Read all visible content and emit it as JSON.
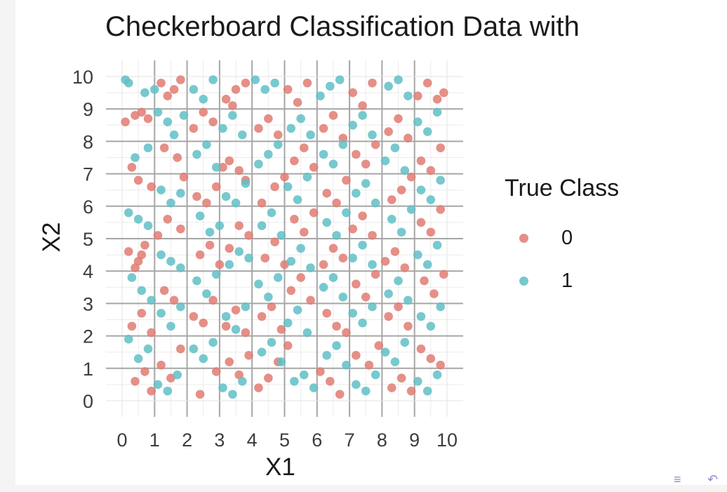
{
  "chart_data": {
    "type": "scatter",
    "title": "Checkerboard Classification Data with",
    "xlabel": "X1",
    "ylabel": "X2",
    "xlim": [
      0,
      10
    ],
    "ylim": [
      0,
      10
    ],
    "x_ticks": [
      "0",
      "1",
      "2",
      "3",
      "4",
      "5",
      "6",
      "7",
      "8",
      "9",
      "10"
    ],
    "y_ticks": [
      "0",
      "1",
      "2",
      "3",
      "4",
      "5",
      "6",
      "7",
      "8",
      "9",
      "10"
    ],
    "grid": true,
    "legend": {
      "title": "True Class",
      "position": "right",
      "entries": [
        "0",
        "1"
      ]
    },
    "colors": {
      "0": "#e07b72",
      "1": "#5fbfc5"
    },
    "series": [
      {
        "name": "0",
        "points": [
          [
            0.1,
            8.6
          ],
          [
            0.4,
            8.8
          ],
          [
            0.6,
            8.9
          ],
          [
            0.8,
            8.7
          ],
          [
            1.2,
            9.8
          ],
          [
            1.4,
            9.4
          ],
          [
            1.6,
            9.6
          ],
          [
            1.8,
            9.9
          ],
          [
            0.3,
            7.2
          ],
          [
            0.5,
            6.8
          ],
          [
            0.9,
            6.6
          ],
          [
            1.3,
            7.8
          ],
          [
            1.7,
            7.5
          ],
          [
            1.9,
            6.9
          ],
          [
            0.2,
            4.6
          ],
          [
            0.5,
            4.3
          ],
          [
            0.7,
            4.8
          ],
          [
            1.1,
            5.1
          ],
          [
            1.4,
            5.6
          ],
          [
            1.8,
            5.3
          ],
          [
            0.4,
            4.1
          ],
          [
            0.6,
            4.5
          ],
          [
            0.3,
            2.3
          ],
          [
            0.6,
            2.7
          ],
          [
            0.9,
            2.1
          ],
          [
            1.3,
            3.4
          ],
          [
            1.6,
            3.1
          ],
          [
            0.4,
            0.6
          ],
          [
            0.7,
            0.9
          ],
          [
            0.9,
            0.3
          ],
          [
            1.2,
            1.1
          ],
          [
            1.5,
            0.7
          ],
          [
            1.8,
            1.6
          ],
          [
            2.2,
            8.4
          ],
          [
            2.5,
            8.9
          ],
          [
            2.8,
            8.6
          ],
          [
            3.2,
            9.3
          ],
          [
            3.5,
            9.6
          ],
          [
            3.8,
            9.8
          ],
          [
            3.4,
            9.1
          ],
          [
            2.3,
            6.3
          ],
          [
            2.6,
            6.1
          ],
          [
            2.9,
            6.6
          ],
          [
            3.1,
            7.2
          ],
          [
            3.3,
            7.4
          ],
          [
            3.6,
            7.1
          ],
          [
            3.8,
            6.8
          ],
          [
            2.4,
            4.5
          ],
          [
            2.7,
            4.8
          ],
          [
            3.0,
            4.2
          ],
          [
            3.3,
            4.7
          ],
          [
            3.6,
            5.4
          ],
          [
            3.9,
            5.1
          ],
          [
            2.2,
            2.6
          ],
          [
            2.5,
            2.4
          ],
          [
            2.8,
            3.1
          ],
          [
            3.2,
            2.3
          ],
          [
            3.5,
            2.8
          ],
          [
            3.8,
            2.1
          ],
          [
            2.4,
            0.2
          ],
          [
            2.9,
            0.9
          ],
          [
            3.3,
            1.2
          ],
          [
            3.6,
            0.8
          ],
          [
            3.9,
            1.4
          ],
          [
            4.2,
            8.4
          ],
          [
            4.5,
            8.7
          ],
          [
            4.8,
            8.2
          ],
          [
            5.1,
            9.6
          ],
          [
            5.4,
            9.2
          ],
          [
            5.7,
            9.8
          ],
          [
            4.3,
            6.1
          ],
          [
            4.7,
            6.6
          ],
          [
            5.0,
            6.9
          ],
          [
            5.3,
            7.4
          ],
          [
            5.6,
            7.8
          ],
          [
            5.9,
            7.2
          ],
          [
            4.4,
            4.4
          ],
          [
            4.7,
            4.9
          ],
          [
            5.0,
            4.2
          ],
          [
            5.3,
            5.6
          ],
          [
            5.6,
            5.2
          ],
          [
            5.9,
            5.8
          ],
          [
            4.3,
            2.6
          ],
          [
            4.6,
            2.9
          ],
          [
            4.9,
            2.2
          ],
          [
            5.2,
            3.4
          ],
          [
            5.5,
            3.8
          ],
          [
            5.8,
            3.1
          ],
          [
            4.2,
            0.4
          ],
          [
            4.5,
            0.7
          ],
          [
            4.8,
            1.2
          ],
          [
            5.1,
            1.7
          ],
          [
            6.2,
            8.4
          ],
          [
            6.5,
            8.8
          ],
          [
            6.8,
            8.1
          ],
          [
            7.1,
            9.5
          ],
          [
            7.4,
            9.1
          ],
          [
            7.7,
            9.8
          ],
          [
            6.3,
            6.4
          ],
          [
            6.6,
            6.1
          ],
          [
            6.9,
            6.8
          ],
          [
            7.2,
            7.6
          ],
          [
            7.5,
            7.3
          ],
          [
            7.8,
            7.9
          ],
          [
            6.2,
            4.2
          ],
          [
            6.5,
            4.7
          ],
          [
            6.8,
            4.4
          ],
          [
            7.1,
            5.3
          ],
          [
            7.4,
            5.7
          ],
          [
            7.7,
            5.1
          ],
          [
            6.3,
            2.7
          ],
          [
            6.6,
            2.3
          ],
          [
            6.9,
            2.1
          ],
          [
            7.2,
            3.6
          ],
          [
            7.5,
            3.2
          ],
          [
            7.8,
            3.9
          ],
          [
            6.1,
            0.9
          ],
          [
            6.4,
            0.6
          ],
          [
            6.7,
            0.2
          ],
          [
            7.2,
            1.4
          ],
          [
            7.6,
            1.1
          ],
          [
            7.9,
            1.7
          ],
          [
            8.2,
            8.3
          ],
          [
            8.5,
            8.7
          ],
          [
            8.8,
            8.1
          ],
          [
            9.1,
            9.4
          ],
          [
            9.4,
            9.8
          ],
          [
            9.7,
            9.3
          ],
          [
            9.9,
            9.5
          ],
          [
            8.3,
            6.2
          ],
          [
            8.6,
            6.5
          ],
          [
            8.9,
            6.9
          ],
          [
            9.2,
            7.4
          ],
          [
            9.5,
            7.1
          ],
          [
            9.8,
            7.8
          ],
          [
            8.1,
            4.3
          ],
          [
            8.4,
            4.6
          ],
          [
            8.7,
            4.1
          ],
          [
            9.2,
            5.5
          ],
          [
            9.5,
            5.2
          ],
          [
            9.8,
            5.9
          ],
          [
            8.2,
            2.6
          ],
          [
            8.5,
            2.9
          ],
          [
            8.8,
            2.3
          ],
          [
            9.3,
            3.7
          ],
          [
            9.6,
            3.3
          ],
          [
            9.9,
            3.9
          ],
          [
            8.3,
            0.4
          ],
          [
            8.6,
            0.7
          ],
          [
            8.9,
            0.3
          ],
          [
            9.2,
            1.6
          ],
          [
            9.5,
            1.3
          ],
          [
            9.8,
            1.1
          ]
        ]
      },
      {
        "name": "1",
        "points": [
          [
            0.1,
            9.9
          ],
          [
            0.2,
            9.8
          ],
          [
            0.7,
            9.5
          ],
          [
            1.0,
            9.6
          ],
          [
            0.4,
            7.5
          ],
          [
            0.8,
            7.8
          ],
          [
            1.1,
            8.9
          ],
          [
            1.4,
            8.6
          ],
          [
            1.6,
            8.2
          ],
          [
            1.9,
            8.8
          ],
          [
            0.2,
            5.8
          ],
          [
            0.5,
            5.6
          ],
          [
            0.8,
            5.4
          ],
          [
            1.2,
            6.5
          ],
          [
            1.5,
            6.1
          ],
          [
            1.8,
            6.4
          ],
          [
            0.3,
            3.8
          ],
          [
            0.6,
            3.4
          ],
          [
            0.9,
            3.1
          ],
          [
            1.2,
            4.5
          ],
          [
            1.5,
            4.3
          ],
          [
            1.8,
            4.1
          ],
          [
            0.2,
            1.9
          ],
          [
            0.5,
            1.3
          ],
          [
            0.8,
            1.6
          ],
          [
            1.2,
            2.7
          ],
          [
            1.5,
            2.3
          ],
          [
            1.8,
            2.9
          ],
          [
            1.1,
            0.5
          ],
          [
            1.4,
            0.3
          ],
          [
            1.7,
            0.8
          ],
          [
            2.2,
            9.6
          ],
          [
            2.5,
            9.3
          ],
          [
            2.8,
            9.9
          ],
          [
            3.1,
            8.4
          ],
          [
            3.4,
            8.8
          ],
          [
            3.7,
            8.2
          ],
          [
            2.3,
            7.6
          ],
          [
            2.6,
            7.9
          ],
          [
            2.9,
            7.2
          ],
          [
            3.2,
            6.3
          ],
          [
            3.5,
            6.1
          ],
          [
            3.8,
            6.7
          ],
          [
            2.4,
            5.7
          ],
          [
            2.7,
            5.2
          ],
          [
            3.0,
            5.4
          ],
          [
            3.3,
            4.2
          ],
          [
            3.6,
            4.6
          ],
          [
            3.9,
            4.4
          ],
          [
            2.3,
            3.7
          ],
          [
            2.6,
            3.3
          ],
          [
            2.9,
            3.9
          ],
          [
            3.2,
            2.6
          ],
          [
            3.5,
            2.2
          ],
          [
            3.8,
            2.9
          ],
          [
            2.2,
            1.6
          ],
          [
            2.5,
            1.3
          ],
          [
            2.8,
            1.8
          ],
          [
            3.1,
            0.4
          ],
          [
            3.4,
            0.2
          ],
          [
            3.7,
            0.6
          ],
          [
            4.1,
            9.9
          ],
          [
            4.4,
            9.6
          ],
          [
            4.7,
            9.8
          ],
          [
            5.2,
            8.4
          ],
          [
            5.5,
            8.7
          ],
          [
            5.8,
            8.2
          ],
          [
            4.2,
            7.3
          ],
          [
            4.5,
            7.6
          ],
          [
            4.8,
            7.9
          ],
          [
            5.1,
            6.6
          ],
          [
            5.4,
            6.2
          ],
          [
            5.7,
            6.9
          ],
          [
            4.3,
            5.4
          ],
          [
            4.6,
            5.8
          ],
          [
            4.9,
            5.1
          ],
          [
            5.2,
            4.3
          ],
          [
            5.5,
            4.7
          ],
          [
            5.8,
            4.1
          ],
          [
            4.2,
            3.6
          ],
          [
            4.5,
            3.2
          ],
          [
            4.8,
            3.8
          ],
          [
            5.1,
            2.4
          ],
          [
            5.4,
            2.8
          ],
          [
            5.7,
            2.1
          ],
          [
            4.3,
            1.5
          ],
          [
            4.6,
            1.8
          ],
          [
            4.9,
            1.2
          ],
          [
            5.3,
            0.6
          ],
          [
            5.6,
            0.8
          ],
          [
            5.9,
            0.4
          ],
          [
            6.1,
            9.4
          ],
          [
            6.4,
            9.7
          ],
          [
            6.7,
            9.9
          ],
          [
            7.1,
            8.5
          ],
          [
            7.4,
            8.8
          ],
          [
            7.7,
            8.2
          ],
          [
            6.2,
            7.6
          ],
          [
            6.5,
            7.3
          ],
          [
            6.8,
            7.9
          ],
          [
            7.2,
            6.4
          ],
          [
            7.5,
            6.7
          ],
          [
            7.8,
            6.1
          ],
          [
            6.3,
            5.5
          ],
          [
            6.6,
            5.1
          ],
          [
            6.9,
            5.8
          ],
          [
            7.1,
            4.4
          ],
          [
            7.4,
            4.8
          ],
          [
            7.7,
            4.2
          ],
          [
            6.2,
            3.5
          ],
          [
            6.5,
            3.8
          ],
          [
            6.8,
            3.2
          ],
          [
            7.1,
            2.7
          ],
          [
            7.4,
            2.4
          ],
          [
            7.7,
            2.9
          ],
          [
            6.3,
            1.4
          ],
          [
            6.6,
            1.7
          ],
          [
            6.9,
            1.1
          ],
          [
            7.2,
            0.5
          ],
          [
            7.5,
            0.3
          ],
          [
            7.8,
            0.8
          ],
          [
            8.2,
            9.7
          ],
          [
            8.5,
            9.9
          ],
          [
            8.8,
            9.4
          ],
          [
            9.1,
            8.6
          ],
          [
            9.4,
            8.3
          ],
          [
            9.7,
            8.9
          ],
          [
            8.1,
            7.4
          ],
          [
            8.4,
            7.8
          ],
          [
            8.7,
            7.1
          ],
          [
            9.2,
            6.5
          ],
          [
            9.5,
            6.2
          ],
          [
            9.8,
            6.8
          ],
          [
            8.3,
            5.6
          ],
          [
            8.6,
            5.2
          ],
          [
            8.9,
            5.9
          ],
          [
            9.1,
            4.5
          ],
          [
            9.4,
            4.2
          ],
          [
            9.7,
            4.8
          ],
          [
            8.2,
            3.3
          ],
          [
            8.5,
            3.7
          ],
          [
            8.8,
            3.1
          ],
          [
            9.2,
            2.6
          ],
          [
            9.5,
            2.3
          ],
          [
            9.8,
            2.9
          ],
          [
            8.1,
            1.5
          ],
          [
            8.4,
            1.2
          ],
          [
            8.7,
            1.8
          ],
          [
            9.1,
            0.6
          ],
          [
            9.4,
            0.3
          ],
          [
            9.7,
            0.8
          ]
        ]
      }
    ]
  }
}
